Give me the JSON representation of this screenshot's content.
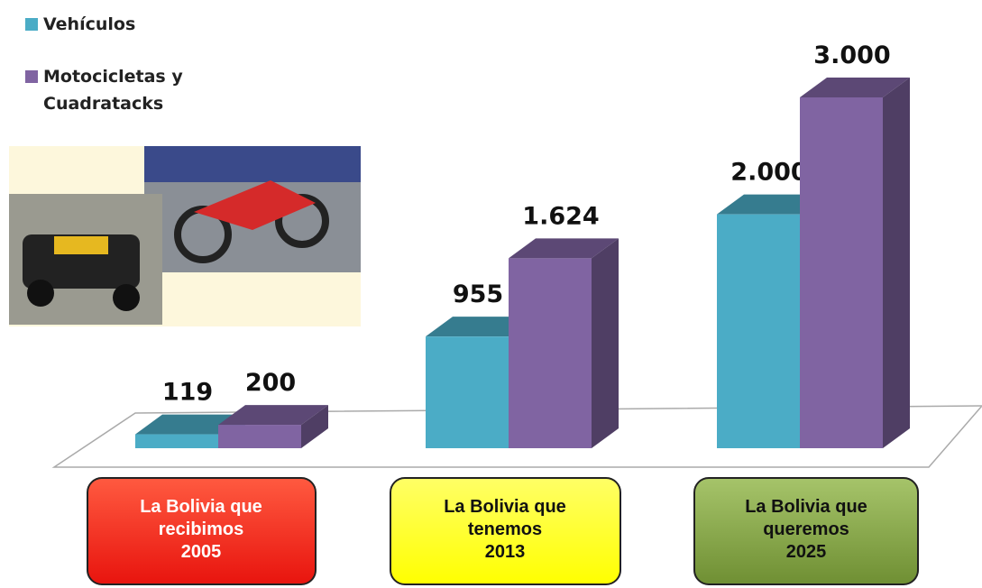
{
  "chart_data": {
    "type": "bar3d",
    "categories": [
      [
        "La Bolivia que",
        "recibimos",
        "2005"
      ],
      [
        "La Bolivia que",
        "tenemos",
        "2013"
      ],
      [
        "La Bolivia que",
        "queremos",
        "2025"
      ]
    ],
    "series": [
      {
        "name": "Vehículos",
        "color": "#4bacc6",
        "values": [
          119,
          955,
          2000
        ],
        "value_labels": [
          "119",
          "955",
          "2.000"
        ]
      },
      {
        "name": "Motocicletas y Cuadratacks",
        "color": "#8064a2",
        "values": [
          200,
          1624,
          3000
        ],
        "value_labels": [
          "200",
          "1.624",
          "3.000"
        ]
      }
    ]
  }
}
